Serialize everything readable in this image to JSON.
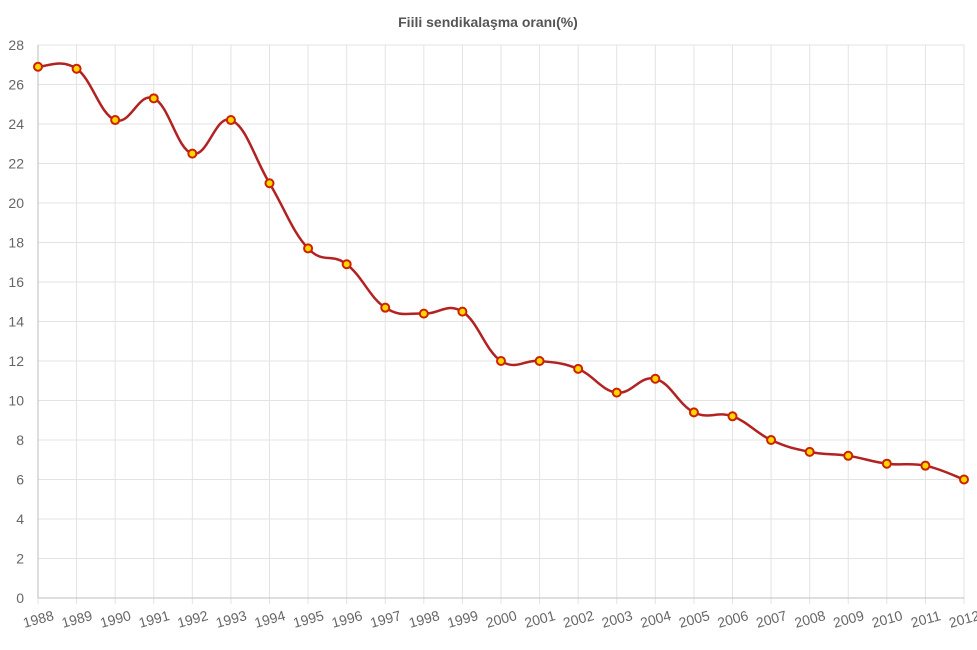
{
  "chart_data": {
    "type": "line",
    "title": "Fiili sendikalaşma oranı(%)",
    "xlabel": "",
    "ylabel": "",
    "categories": [
      "1988",
      "1989",
      "1990",
      "1991",
      "1992",
      "1993",
      "1994",
      "1995",
      "1996",
      "1997",
      "1998",
      "1999",
      "2000",
      "2001",
      "2002",
      "2003",
      "2004",
      "2005",
      "2006",
      "2007",
      "2008",
      "2009",
      "2010",
      "2011",
      "2012"
    ],
    "series": [
      {
        "values": [
          26.9,
          26.8,
          24.2,
          25.3,
          22.5,
          24.2,
          21.0,
          17.7,
          16.9,
          14.7,
          14.4,
          14.5,
          12.0,
          12.0,
          11.6,
          10.4,
          11.1,
          9.4,
          9.2,
          8.0,
          7.4,
          7.2,
          6.8,
          6.7,
          6.0
        ],
        "color": "#b22222",
        "marker_fill": "#ffd700",
        "marker_stroke": "#cc2200"
      }
    ],
    "ylim": [
      0,
      28
    ],
    "yticks": [
      "0",
      "2",
      "4",
      "6",
      "8",
      "10",
      "12",
      "14",
      "16",
      "18",
      "20",
      "22",
      "24",
      "26",
      "28"
    ],
    "grid": true,
    "legend": "none"
  }
}
